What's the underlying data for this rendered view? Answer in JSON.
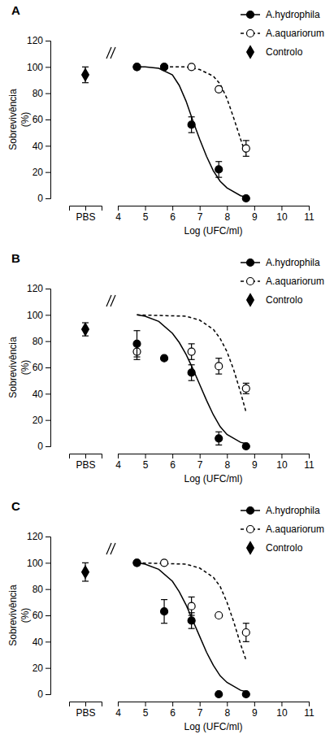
{
  "chart_data": [
    {
      "type": "scatter",
      "title": "A",
      "ylabel": [
        "Sobrevivência",
        "(%)"
      ],
      "xlabel": "Log (UFC/ml)",
      "categories": [
        "PBS"
      ],
      "xlim": [
        4,
        11
      ],
      "xticks": [
        4,
        5,
        6,
        7,
        8,
        9,
        10,
        11
      ],
      "ylim": [
        0,
        120
      ],
      "yticks": [
        0,
        20,
        40,
        60,
        80,
        100,
        120
      ],
      "legend": "top-right",
      "series": [
        {
          "name": "A.hydrophila",
          "color": "#000000",
          "marker": "circle",
          "line_style": "solid",
          "x": [
            4.7,
            5.7,
            6.7,
            7.7,
            8.7
          ],
          "values": [
            100,
            100,
            56,
            22,
            0
          ],
          "errors": [
            0,
            0,
            6,
            6,
            0
          ],
          "fit_x": [
            4.7,
            5.0,
            5.5,
            6.0,
            6.25,
            6.5,
            6.75,
            7.0,
            7.25,
            7.5,
            7.75,
            8.0,
            8.5,
            8.7
          ],
          "fit_values": [
            100,
            100,
            99,
            94,
            86,
            74,
            59,
            45,
            32,
            21,
            13,
            8,
            2,
            1
          ]
        },
        {
          "name": "A.aquariorum",
          "color": "#000000",
          "marker": "open-circle",
          "line_style": "dashed",
          "x": [
            4.7,
            5.7,
            6.7,
            7.7,
            8.7
          ],
          "values": [
            100,
            100,
            100,
            83,
            38
          ],
          "errors": [
            0,
            0,
            0,
            0,
            6
          ],
          "fit_x": [
            5.7,
            6.5,
            7.0,
            7.5,
            7.75,
            8.0,
            8.25,
            8.5,
            8.7
          ],
          "fit_values": [
            100,
            100,
            98,
            93,
            87,
            76,
            61,
            45,
            33
          ]
        },
        {
          "name": "Controlo",
          "color": "#000000",
          "marker": "diamond",
          "line_style": "none",
          "values": [
            94
          ],
          "errors": [
            6
          ]
        }
      ]
    },
    {
      "type": "scatter",
      "title": "B",
      "ylabel": [
        "Sobrevivência",
        "(%)"
      ],
      "xlabel": "Log (UFC/ml)",
      "categories": [
        "PBS"
      ],
      "xlim": [
        4,
        11
      ],
      "xticks": [
        4,
        5,
        6,
        7,
        8,
        9,
        10,
        11
      ],
      "ylim": [
        0,
        120
      ],
      "yticks": [
        0,
        20,
        40,
        60,
        80,
        100,
        120
      ],
      "legend": "top-right",
      "series": [
        {
          "name": "A.hydrophila",
          "color": "#000000",
          "marker": "circle",
          "line_style": "solid",
          "x": [
            4.7,
            5.7,
            6.7,
            7.7,
            8.7
          ],
          "values": [
            78,
            67,
            56,
            6,
            0
          ],
          "errors": [
            10,
            0,
            6,
            5,
            0
          ],
          "fit_x": [
            4.7,
            5.0,
            5.5,
            6.0,
            6.25,
            6.5,
            6.75,
            7.0,
            7.25,
            7.5,
            7.75,
            8.0,
            8.5,
            8.7
          ],
          "fit_values": [
            100,
            99,
            95,
            86,
            79,
            70,
            59,
            47,
            35,
            24,
            15,
            9,
            3,
            2
          ]
        },
        {
          "name": "A.aquariorum",
          "color": "#000000",
          "marker": "open-circle",
          "line_style": "dashed",
          "x": [
            4.7,
            6.7,
            7.7,
            8.7
          ],
          "values": [
            72,
            72,
            61,
            44
          ],
          "errors": [
            6,
            6,
            6,
            4
          ],
          "fit_x": [
            4.7,
            6.5,
            7.0,
            7.5,
            7.75,
            8.0,
            8.25,
            8.5,
            8.7
          ],
          "fit_values": [
            100,
            99,
            96,
            89,
            82,
            72,
            58,
            41,
            26
          ]
        },
        {
          "name": "Controlo",
          "color": "#000000",
          "marker": "diamond",
          "line_style": "none",
          "values": [
            89
          ],
          "errors": [
            5
          ]
        }
      ]
    },
    {
      "type": "scatter",
      "title": "C",
      "ylabel": [
        "Sobrevivência",
        "(%)"
      ],
      "xlabel": "Log (UFC/ml)",
      "categories": [
        "PBS"
      ],
      "xlim": [
        4,
        11
      ],
      "xticks": [
        4,
        5,
        6,
        7,
        8,
        9,
        10,
        11
      ],
      "ylim": [
        0,
        120
      ],
      "yticks": [
        0,
        20,
        40,
        60,
        80,
        100,
        120
      ],
      "legend": "top-right",
      "series": [
        {
          "name": "A.hydrophila",
          "color": "#000000",
          "marker": "circle",
          "line_style": "solid",
          "x": [
            4.7,
            5.7,
            6.7,
            7.7,
            8.7
          ],
          "values": [
            100,
            63,
            56,
            0,
            0
          ],
          "errors": [
            0,
            9,
            6,
            0,
            0
          ],
          "fit_x": [
            4.7,
            5.0,
            5.5,
            6.0,
            6.25,
            6.5,
            6.75,
            7.0,
            7.25,
            7.5,
            7.75,
            8.0,
            8.5,
            8.7
          ],
          "fit_values": [
            100,
            99,
            95,
            86,
            78,
            68,
            56,
            44,
            32,
            22,
            14,
            9,
            3,
            2
          ]
        },
        {
          "name": "A.aquariorum",
          "color": "#000000",
          "marker": "open-circle",
          "line_style": "dashed",
          "x": [
            4.7,
            5.7,
            6.7,
            7.7,
            8.7
          ],
          "values": [
            100,
            100,
            67,
            60,
            47
          ],
          "errors": [
            0,
            0,
            7,
            0,
            7
          ],
          "fit_x": [
            4.7,
            6.5,
            7.0,
            7.5,
            7.75,
            8.0,
            8.25,
            8.5,
            8.7
          ],
          "fit_values": [
            100,
            99,
            96,
            89,
            82,
            70,
            55,
            38,
            26
          ]
        },
        {
          "name": "Controlo",
          "color": "#000000",
          "marker": "diamond",
          "line_style": "none",
          "values": [
            93
          ],
          "errors": [
            7
          ]
        }
      ]
    }
  ]
}
